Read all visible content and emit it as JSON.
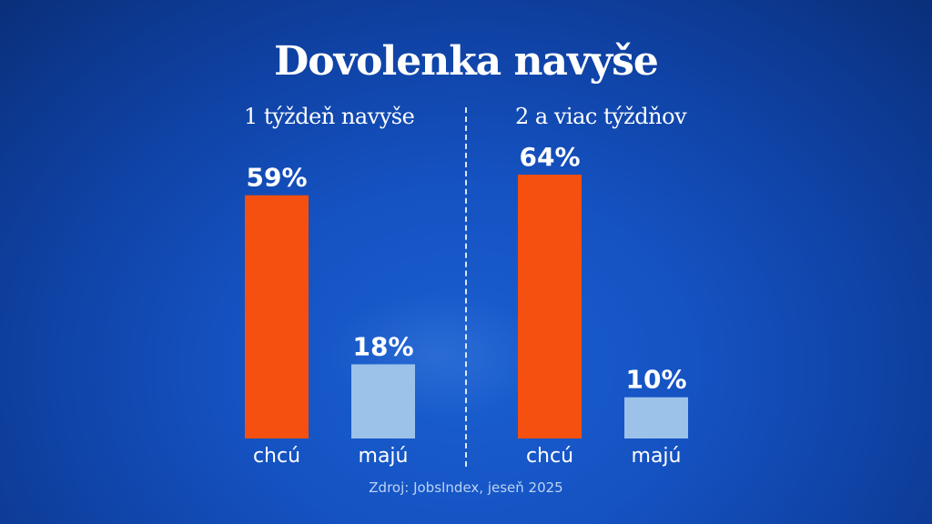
{
  "colors": {
    "want": "#f5500f",
    "have": "#9cc2ea"
  },
  "chart_data": [
    {
      "type": "bar",
      "title": "1 týždeň navyše",
      "categories": [
        "chcú",
        "majú"
      ],
      "values": [
        59,
        18
      ],
      "value_labels": [
        "59%",
        "18%"
      ],
      "ylim": [
        0,
        64
      ]
    },
    {
      "type": "bar",
      "title": "2 a viac týždňov",
      "categories": [
        "chcú",
        "majú"
      ],
      "values": [
        64,
        10
      ],
      "value_labels": [
        "64%",
        "10%"
      ],
      "ylim": [
        0,
        64
      ]
    }
  ],
  "header": {
    "title": "Dovolenka navyše"
  },
  "footer": {
    "source": "Zdroj: JobsIndex, jeseň 2025"
  }
}
